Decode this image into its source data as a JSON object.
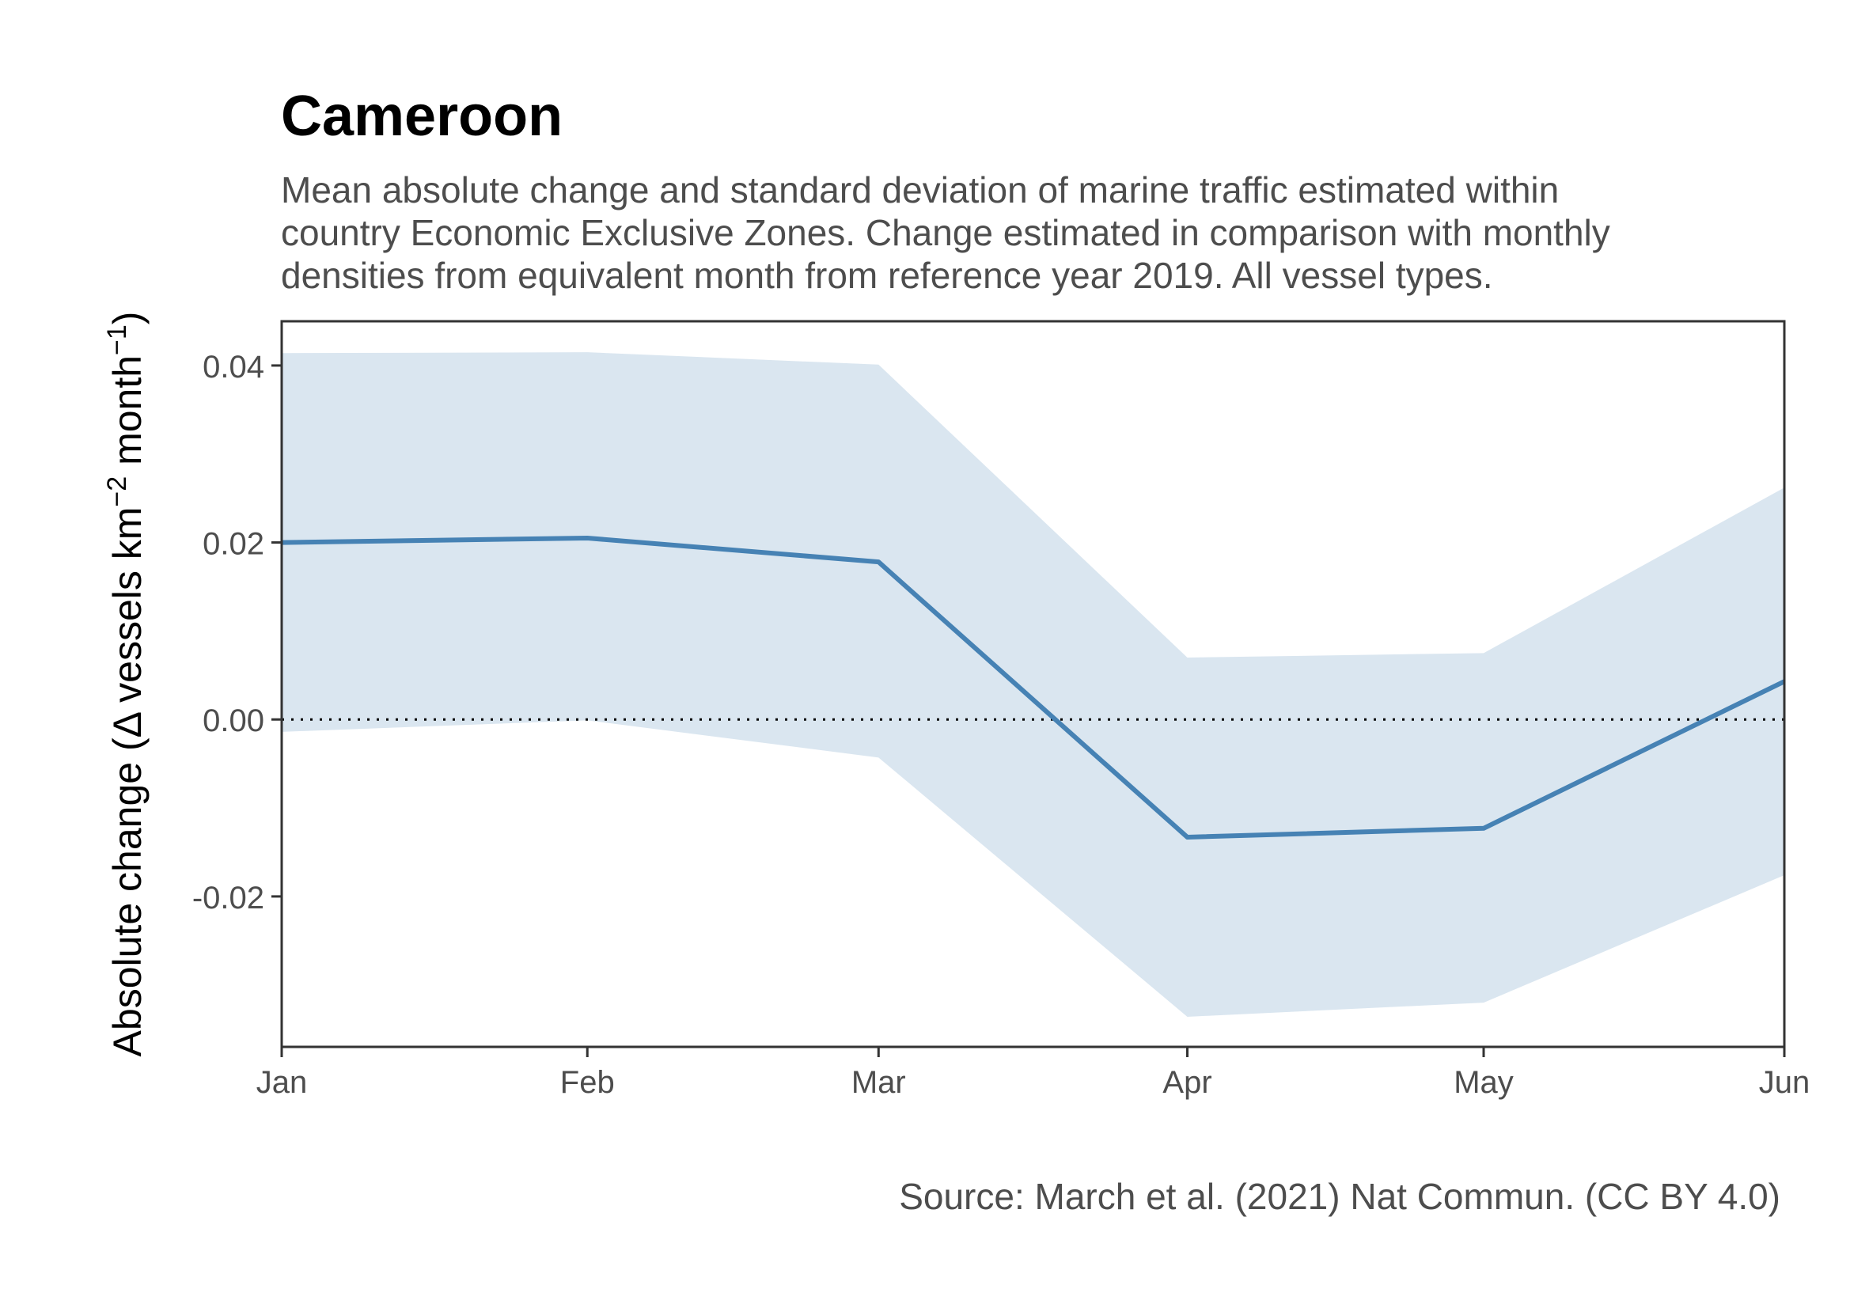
{
  "title": "Cameroon",
  "subtitle_lines": [
    "Mean absolute change and standard deviation of marine traffic estimated within",
    "country Economic Exclusive Zones. Change estimated in comparison with monthly",
    "densities from equivalent month from reference year 2019. All vessel types."
  ],
  "caption": "Source: March et al. (2021) Nat Commun. (CC BY 4.0)",
  "colors": {
    "line": "#4682b4",
    "band": "#dae6f0",
    "axis": "#333333",
    "tick_text": "#4d4d4d",
    "reference_line": "#000000"
  },
  "chart_data": {
    "type": "line",
    "title": "Cameroon",
    "xlabel": "",
    "ylabel": {
      "prefix": "Absolute change (",
      "delta": "Δ",
      "main": " vessels km",
      "sup1": "−2",
      "mid": " month",
      "sup2": "−1",
      "close": ")"
    },
    "categories": [
      "Jan",
      "Feb",
      "Mar",
      "Apr",
      "May",
      "Jun"
    ],
    "x_fraction": [
      0,
      0.2034,
      0.3972,
      0.6027,
      0.7999,
      1.0
    ],
    "series": [
      {
        "values": [
          0.02,
          0.0205,
          0.0178,
          -0.0133,
          -0.0123,
          0.0043
        ],
        "lower": [
          -0.0014,
          -0.0001,
          -0.0043,
          -0.0336,
          -0.032,
          -0.0176
        ],
        "upper": [
          0.0414,
          0.0415,
          0.0401,
          0.007,
          0.0075,
          0.0262
        ]
      }
    ],
    "ylim": [
      -0.037,
      0.045
    ],
    "yticks": [
      {
        "value": 0.04,
        "label": "0.04"
      },
      {
        "value": 0.02,
        "label": "0.02"
      },
      {
        "value": 0.0,
        "label": "0.00"
      },
      {
        "value": -0.02,
        "label": "-0.02"
      }
    ],
    "reference_line": 0,
    "grid": false,
    "legend": "none"
  }
}
